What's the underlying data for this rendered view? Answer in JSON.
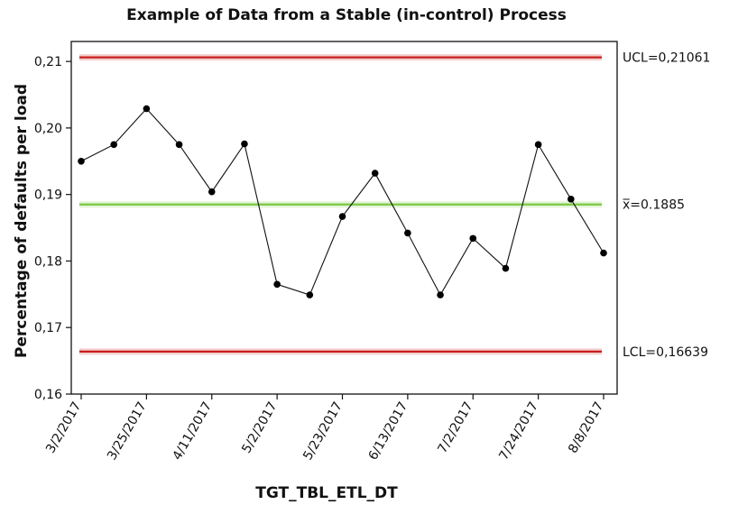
{
  "chart_data": {
    "type": "line",
    "title": "Example of Data from a Stable (in-control) Process",
    "xlabel": "TGT_TBL_ETL_DT",
    "ylabel": "Percentage of defaults per load",
    "ylim": [
      0.16,
      0.213
    ],
    "yticks": [
      0.16,
      0.17,
      0.18,
      0.19,
      0.2,
      0.21
    ],
    "ytick_labels": [
      "0,16",
      "0,17",
      "0,18",
      "0,19",
      "0,20",
      "0,21"
    ],
    "xtick_labels": [
      "3/2/2017",
      "3/25/2017",
      "4/11/2017",
      "5/2/2017",
      "5/23/2017",
      "6/13/2017",
      "7/2/2017",
      "7/24/2017",
      "8/8/2017"
    ],
    "xtick_positions": [
      0,
      2,
      4,
      6,
      8,
      10,
      12,
      14,
      16
    ],
    "series": [
      {
        "values": [
          0.195,
          0.1975,
          0.2029,
          0.1975,
          0.1904,
          0.1976,
          0.1765,
          0.1749,
          0.1867,
          0.1932,
          0.1842,
          0.1749,
          0.1834,
          0.1789,
          0.1975,
          0.1893,
          0.1812
        ]
      }
    ],
    "reference_lines": [
      {
        "name": "UCL",
        "label": "UCL=0,21061",
        "value": 0.21061,
        "color": "#c81e1e"
      },
      {
        "name": "mean",
        "label": "x̅=0.1885",
        "value": 0.1885,
        "color": "#7ac943"
      },
      {
        "name": "LCL",
        "label": "LCL=0,16639",
        "value": 0.16639,
        "color": "#c81e1e"
      }
    ],
    "grid": false
  }
}
